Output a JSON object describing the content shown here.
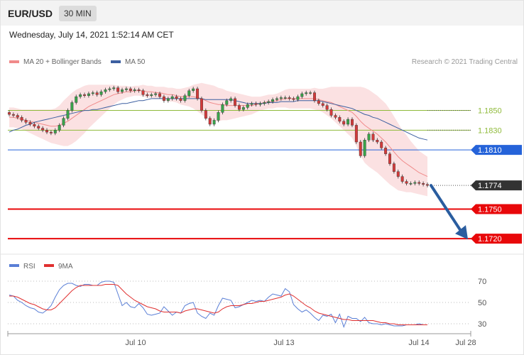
{
  "header": {
    "symbol": "EUR/USD",
    "timeframe": "30 MIN"
  },
  "datetime": "Wednesday, July 14, 2021 1:52:14 AM CET",
  "credit": "Research © 2021 Trading Central",
  "colors": {
    "support": "#e8080a",
    "pivot": "#2563d9",
    "resistance": "#8fba3a",
    "bollinger": "#fadadb",
    "ma20": "#f08a8a",
    "ma50": "#3c5fa0",
    "up_candle": "#39a34a",
    "down_candle": "#d33a3a",
    "rsi": "#5a7fd6",
    "rsi_ma": "#e03030"
  },
  "chart_data": [
    {
      "type": "candlestick",
      "legend": [
        {
          "name": "MA 20 + Bollinger Bands",
          "color": "#f08a8a"
        },
        {
          "name": "MA 50",
          "color": "#3c5fa0"
        }
      ],
      "x_ticks": [
        "Jul 10",
        "Jul 13",
        "Jul 14",
        "Jul 28"
      ],
      "ylim": [
        1.171,
        1.189
      ],
      "levels": [
        {
          "label": "1.1850",
          "value": 1.185,
          "kind": "resistance"
        },
        {
          "label": "1.1830",
          "value": 1.183,
          "kind": "resistance"
        },
        {
          "label": "1.1810",
          "value": 1.181,
          "kind": "pivot"
        },
        {
          "label": "1.1774",
          "value": 1.1774,
          "kind": "last"
        },
        {
          "label": "1.1750",
          "value": 1.175,
          "kind": "support"
        },
        {
          "label": "1.1720",
          "value": 1.172,
          "kind": "support"
        }
      ],
      "close": [
        1.1846,
        1.1845,
        1.1843,
        1.184,
        1.1838,
        1.1836,
        1.1834,
        1.1832,
        1.183,
        1.1828,
        1.1827,
        1.183,
        1.1835,
        1.1842,
        1.185,
        1.1858,
        1.1864,
        1.1866,
        1.1865,
        1.1867,
        1.1868,
        1.1866,
        1.1869,
        1.1871,
        1.1872,
        1.1873,
        1.1869,
        1.1871,
        1.1872,
        1.187,
        1.1871,
        1.187,
        1.1866,
        1.1865,
        1.1866,
        1.1867,
        1.1864,
        1.186,
        1.1862,
        1.1864,
        1.1862,
        1.186,
        1.1865,
        1.187,
        1.1872,
        1.1862,
        1.185,
        1.1842,
        1.1836,
        1.184,
        1.1848,
        1.1856,
        1.186,
        1.1862,
        1.1855,
        1.1851,
        1.1853,
        1.1856,
        1.1857,
        1.1856,
        1.1857,
        1.1858,
        1.1859,
        1.1861,
        1.1862,
        1.1863,
        1.1863,
        1.1862,
        1.1861,
        1.1864,
        1.1867,
        1.1868,
        1.1868,
        1.186,
        1.1857,
        1.1855,
        1.1851,
        1.1845,
        1.1843,
        1.1839,
        1.1836,
        1.1841,
        1.1835,
        1.1818,
        1.1804,
        1.182,
        1.1826,
        1.182,
        1.1818,
        1.1812,
        1.1806,
        1.1796,
        1.1788,
        1.1783,
        1.1778,
        1.1776,
        1.1776,
        1.1777,
        1.1776,
        1.1775,
        1.1774
      ],
      "ma20": [
        1.1843,
        1.1843,
        1.1842,
        1.1841,
        1.184,
        1.1839,
        1.1838,
        1.1837,
        1.1836,
        1.1835,
        1.1834,
        1.1834,
        1.1835,
        1.1837,
        1.1839,
        1.1842,
        1.1845,
        1.1848,
        1.1851,
        1.1854,
        1.1856,
        1.1858,
        1.186,
        1.1862,
        1.1864,
        1.1866,
        1.1867,
        1.1868,
        1.1869,
        1.1869,
        1.187,
        1.187,
        1.187,
        1.1869,
        1.1869,
        1.1868,
        1.1868,
        1.1867,
        1.1866,
        1.1866,
        1.1865,
        1.1864,
        1.1864,
        1.1864,
        1.1864,
        1.1863,
        1.1862,
        1.186,
        1.1858,
        1.1857,
        1.1856,
        1.1856,
        1.1855,
        1.1855,
        1.1855,
        1.1855,
        1.1855,
        1.1855,
        1.1855,
        1.1856,
        1.1857,
        1.1858,
        1.1859,
        1.1859,
        1.186,
        1.1861,
        1.1862,
        1.1862,
        1.1862,
        1.1862,
        1.1862,
        1.1862,
        1.1862,
        1.1862,
        1.1861,
        1.186,
        1.1859,
        1.1858,
        1.1856,
        1.1854,
        1.1852,
        1.185,
        1.1848,
        1.1844,
        1.1839,
        1.1835,
        1.1832,
        1.1829,
        1.1826,
        1.1822,
        1.1818,
        1.1813,
        1.1808,
        1.1803,
        1.1799,
        1.1796,
        1.1793,
        1.179,
        1.1787,
        1.1785,
        1.1783
      ],
      "band_width": [
        0.001,
        0.001,
        0.001,
        0.001,
        0.0011,
        0.0012,
        0.0013,
        0.0014,
        0.0015,
        0.0016,
        0.0017,
        0.0018,
        0.002,
        0.0023,
        0.0025,
        0.0026,
        0.0026,
        0.0025,
        0.0024,
        0.0022,
        0.002,
        0.0018,
        0.0016,
        0.0014,
        0.0012,
        0.001,
        0.0008,
        0.0007,
        0.0006,
        0.0005,
        0.0005,
        0.0005,
        0.0006,
        0.0006,
        0.0006,
        0.0006,
        0.0006,
        0.0007,
        0.0007,
        0.0007,
        0.0007,
        0.0008,
        0.0009,
        0.001,
        0.0012,
        0.0014,
        0.0016,
        0.0017,
        0.0018,
        0.0018,
        0.0017,
        0.0016,
        0.0015,
        0.0014,
        0.0013,
        0.0012,
        0.0011,
        0.001,
        0.0009,
        0.0008,
        0.0007,
        0.0007,
        0.0007,
        0.0007,
        0.0007,
        0.0008,
        0.0009,
        0.001,
        0.001,
        0.001,
        0.001,
        0.001,
        0.001,
        0.0011,
        0.0011,
        0.0012,
        0.0014,
        0.0016,
        0.0018,
        0.002,
        0.0022,
        0.0024,
        0.0026,
        0.003,
        0.0035,
        0.0038,
        0.0039,
        0.0039,
        0.0039,
        0.0039,
        0.0039,
        0.0038,
        0.0036,
        0.0034,
        0.0031,
        0.0029,
        0.0026,
        0.0024,
        0.0022,
        0.0021,
        0.002
      ],
      "ma50": [
        1.1828,
        1.183,
        1.1831,
        1.1833,
        1.1835,
        1.1836,
        1.1838,
        1.1839,
        1.184,
        1.1841,
        1.1842,
        1.1843,
        1.1844,
        1.1845,
        1.1846,
        1.1847,
        1.1848,
        1.1849,
        1.185,
        1.185,
        1.1851,
        1.1851,
        1.1852,
        1.1853,
        1.1854,
        1.1855,
        1.1856,
        1.1857,
        1.1857,
        1.1858,
        1.1859,
        1.186,
        1.186,
        1.1861,
        1.1862,
        1.1862,
        1.1862,
        1.1862,
        1.1862,
        1.1862,
        1.1862,
        1.1862,
        1.1862,
        1.1862,
        1.1862,
        1.1862,
        1.1862,
        1.1861,
        1.1861,
        1.1861,
        1.1861,
        1.1861,
        1.1861,
        1.1861,
        1.186,
        1.1859,
        1.1858,
        1.1857,
        1.1857,
        1.1857,
        1.1857,
        1.1857,
        1.1858,
        1.1858,
        1.1858,
        1.1859,
        1.1859,
        1.1859,
        1.1859,
        1.186,
        1.186,
        1.186,
        1.186,
        1.186,
        1.186,
        1.1859,
        1.1858,
        1.1857,
        1.1856,
        1.1855,
        1.1854,
        1.1853,
        1.1852,
        1.185,
        1.1848,
        1.1846,
        1.1845,
        1.1843,
        1.1842,
        1.184,
        1.1838,
        1.1836,
        1.1834,
        1.1832,
        1.183,
        1.1828,
        1.1826,
        1.1824,
        1.1822,
        1.1821,
        1.182
      ],
      "forecast": {
        "from": 1.1774,
        "to": 1.172
      }
    },
    {
      "type": "line",
      "legend": [
        {
          "name": "RSI",
          "color": "#5a7fd6"
        },
        {
          "name": "9MA",
          "color": "#e03030"
        }
      ],
      "y_ticks": [
        "70",
        "50",
        "30"
      ],
      "ylim": [
        22,
        78
      ],
      "series": [
        {
          "name": "RSI",
          "values": [
            57,
            56,
            52,
            50,
            47,
            45,
            44,
            41,
            40,
            43,
            47,
            55,
            62,
            66,
            68,
            68,
            66,
            65,
            67,
            67,
            66,
            66,
            69,
            70,
            70,
            69,
            58,
            47,
            50,
            46,
            45,
            49,
            45,
            39,
            38,
            39,
            40,
            46,
            42,
            38,
            41,
            40,
            47,
            49,
            50,
            40,
            37,
            35,
            40,
            38,
            47,
            54,
            53,
            52,
            45,
            46,
            48,
            50,
            52,
            51,
            52,
            51,
            55,
            58,
            57,
            56,
            63,
            60,
            48,
            44,
            41,
            43,
            40,
            36,
            33,
            38,
            37,
            39,
            31,
            39,
            27,
            37,
            35,
            35,
            32,
            36,
            31,
            30,
            30,
            29,
            30,
            29,
            28,
            28,
            28,
            29,
            29,
            29,
            30,
            29,
            29
          ]
        },
        {
          "name": "9MA",
          "values": [
            56,
            56,
            55,
            53,
            51,
            49,
            48,
            46,
            44,
            43,
            43,
            45,
            49,
            53,
            57,
            61,
            64,
            66,
            66,
            66,
            66,
            66,
            66,
            67,
            67,
            67,
            66,
            62,
            58,
            55,
            52,
            50,
            48,
            46,
            45,
            44,
            42,
            41,
            41,
            41,
            41,
            40,
            42,
            43,
            44,
            44,
            43,
            42,
            41,
            40,
            41,
            44,
            46,
            47,
            47,
            47,
            48,
            49,
            49,
            50,
            51,
            51,
            52,
            53,
            54,
            55,
            57,
            58,
            56,
            53,
            50,
            47,
            45,
            42,
            40,
            39,
            38,
            37,
            36,
            35,
            34,
            34,
            33,
            33,
            33,
            33,
            33,
            33,
            32,
            31,
            31,
            30,
            30,
            29,
            29,
            29,
            29,
            29,
            29,
            29,
            29
          ]
        }
      ]
    }
  ]
}
